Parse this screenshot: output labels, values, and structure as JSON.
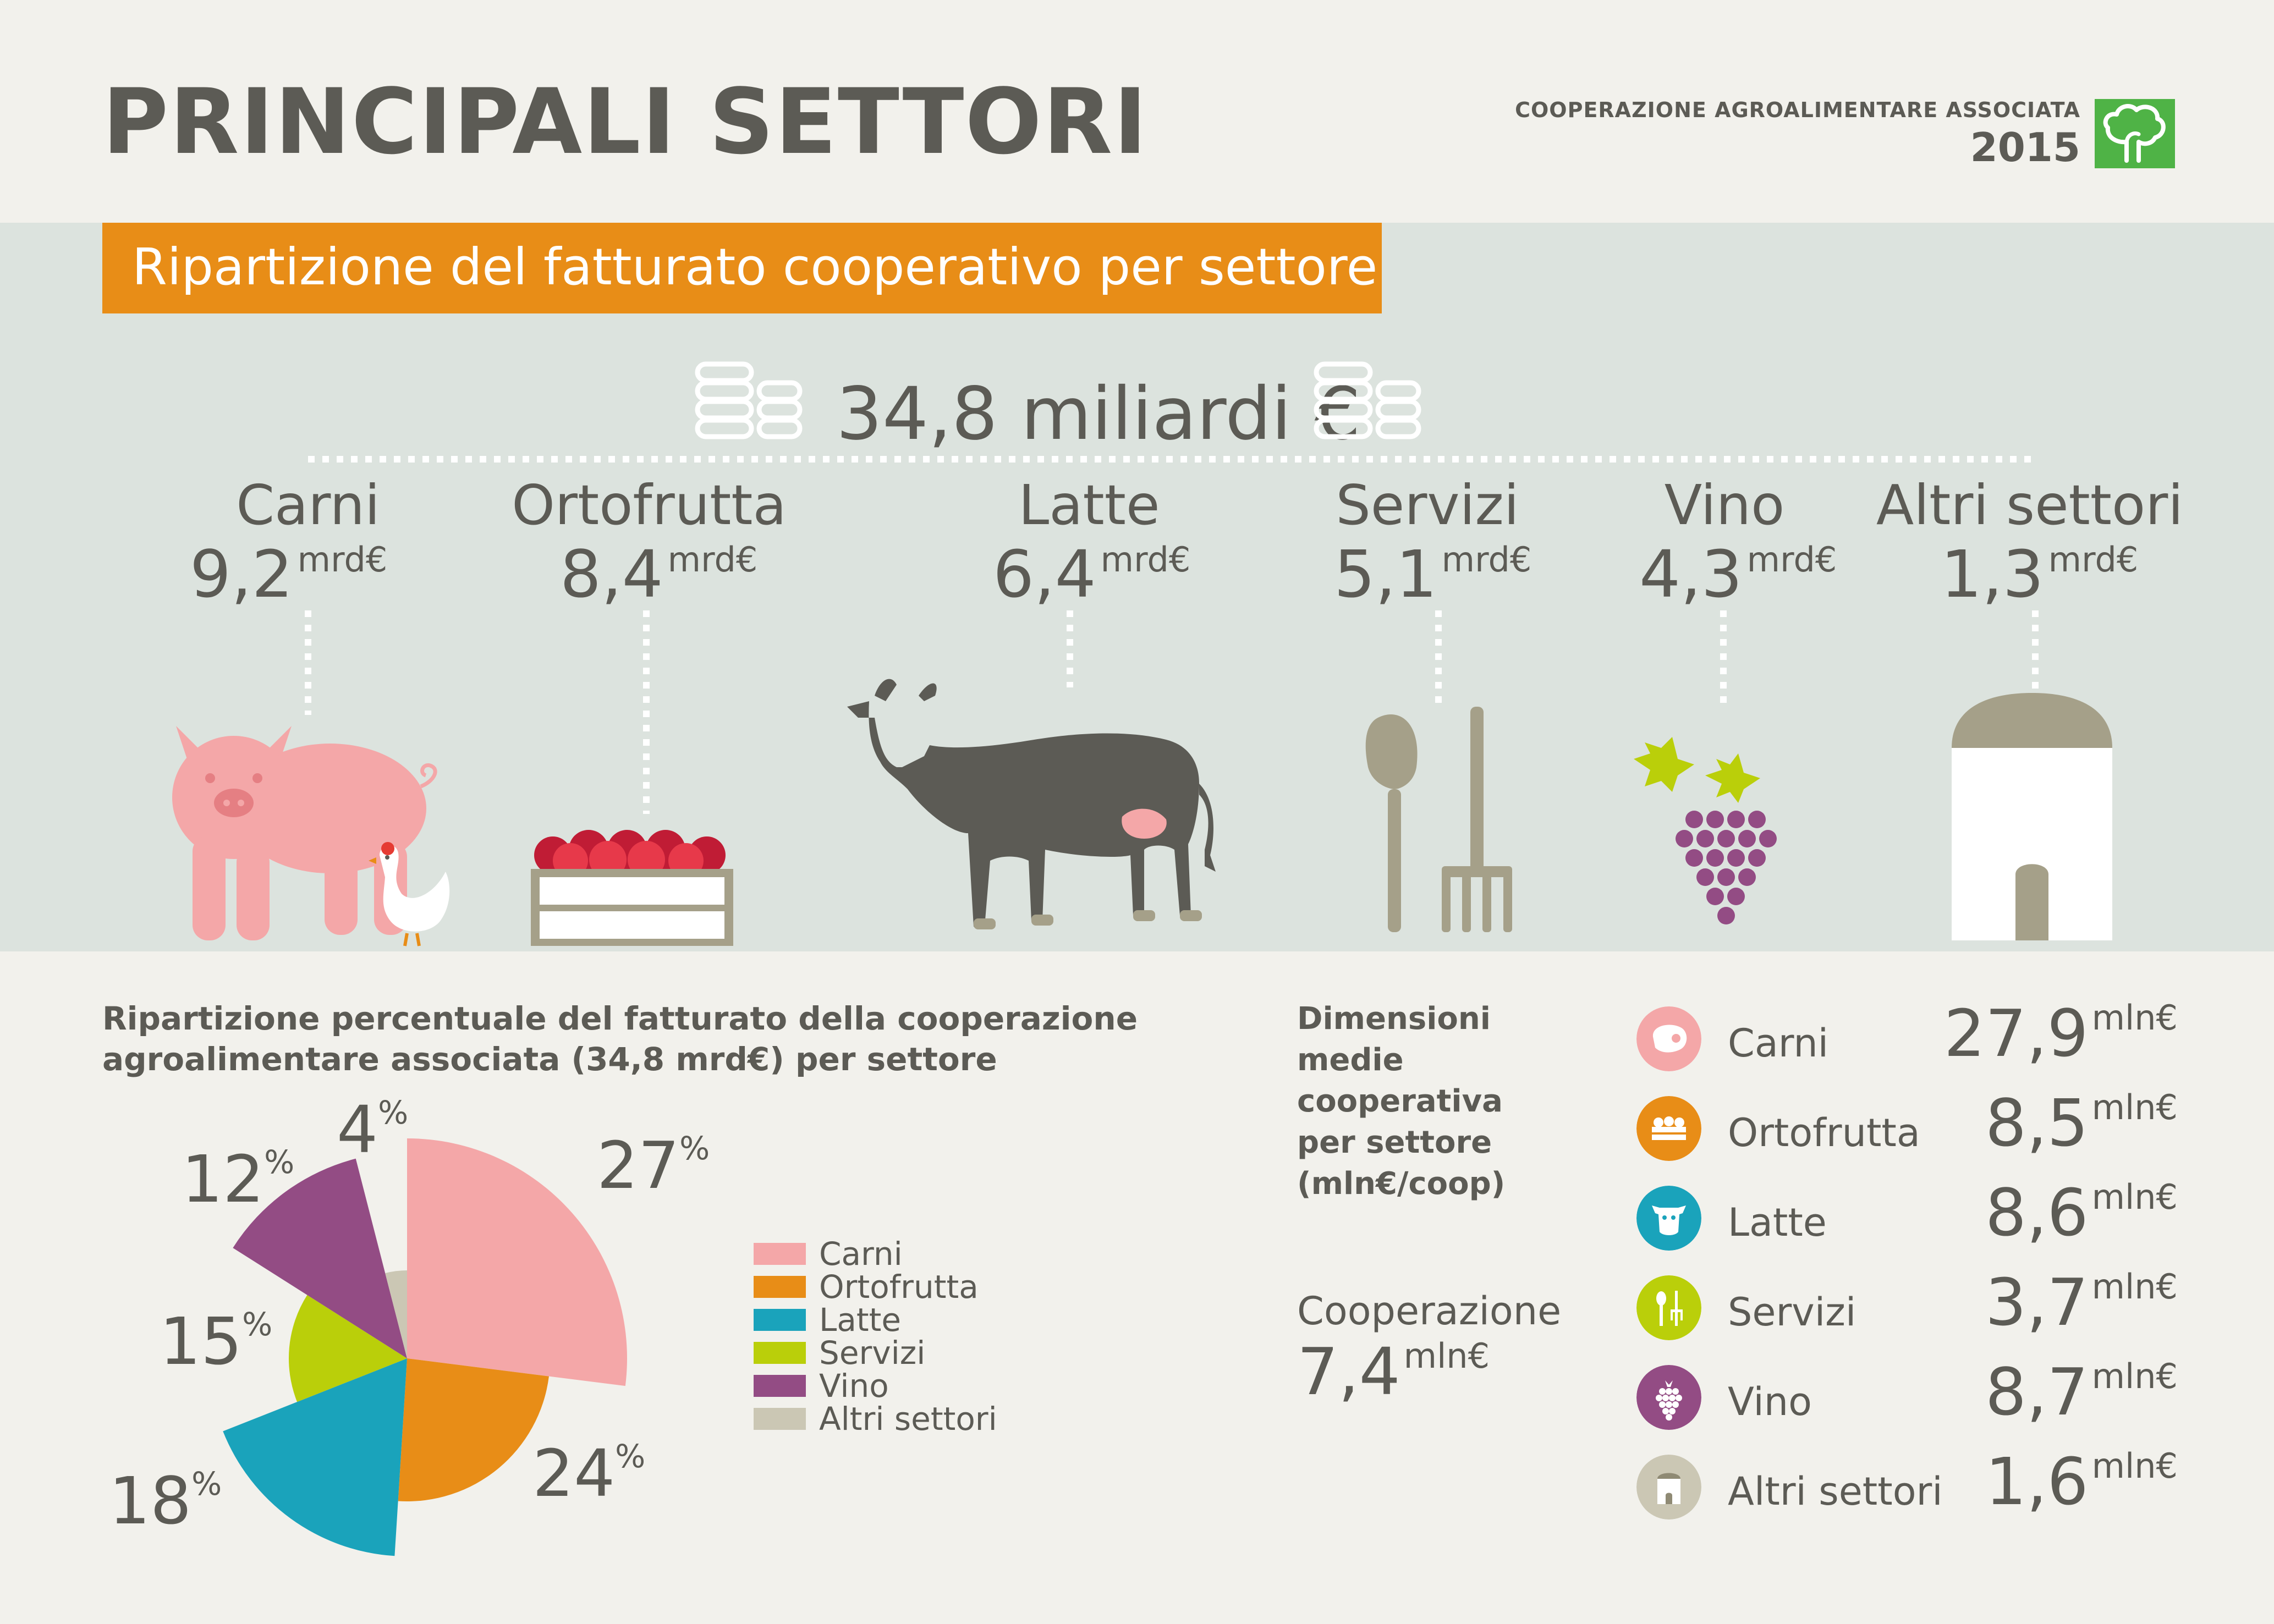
{
  "header": {
    "title": "PRINCIPALI SETTORI",
    "org": "COOPERAZIONE AGROALIMENTARE ASSOCIATA",
    "year": "2015"
  },
  "band": {
    "title": "Ripartizione del fatturato cooperativo per settore",
    "total": "34,8 miliardi €",
    "sectors": [
      {
        "name": "Carni",
        "value": "9,2",
        "unit": "mrd€"
      },
      {
        "name": "Ortofrutta",
        "value": "8,4",
        "unit": "mrd€"
      },
      {
        "name": "Latte",
        "value": "6,4",
        "unit": "mrd€"
      },
      {
        "name": "Servizi",
        "value": "5,1",
        "unit": "mrd€"
      },
      {
        "name": "Vino",
        "value": "4,3",
        "unit": "mrd€"
      },
      {
        "name": "Altri settori",
        "value": "1,3",
        "unit": "mrd€"
      }
    ]
  },
  "pie_section": {
    "title_line1": "Ripartizione percentuale del fatturato della cooperazione",
    "title_line2": "agroalimentare associata (34,8 mrd€) per settore",
    "labels": [
      {
        "num": "27",
        "sym": "%"
      },
      {
        "num": "24",
        "sym": "%"
      },
      {
        "num": "18",
        "sym": "%"
      },
      {
        "num": "15",
        "sym": "%"
      },
      {
        "num": "12",
        "sym": "%"
      },
      {
        "num": "4",
        "sym": "%"
      }
    ]
  },
  "chart_data": {
    "type": "pie",
    "title": "Ripartizione percentuale del fatturato della cooperazione agroalimentare associata (34,8 mrd€) per settore",
    "categories": [
      "Carni",
      "Ortofrutta",
      "Latte",
      "Servizi",
      "Vino",
      "Altri settori"
    ],
    "values": [
      27,
      24,
      18,
      15,
      12,
      4
    ],
    "colors": [
      "#f4a7a8",
      "#e88d17",
      "#1aa3bb",
      "#bacf0a",
      "#934c84",
      "#cbc7b4"
    ],
    "legend_position": "right"
  },
  "dimensions": {
    "title_lines": [
      "Dimensioni",
      "medie",
      "cooperativa",
      "per settore",
      "(mln€/coop)"
    ],
    "coop_label": "Cooperazione",
    "coop_value": "7,4",
    "coop_unit": "mln€",
    "rows": [
      {
        "label": "Carni",
        "value": "27,9",
        "unit": "mln€",
        "icon": "meat-icon",
        "color": "#f4a7a8"
      },
      {
        "label": "Ortofrutta",
        "value": "8,5",
        "unit": "mln€",
        "icon": "crate-icon",
        "color": "#e88d17"
      },
      {
        "label": "Latte",
        "value": "8,6",
        "unit": "mln€",
        "icon": "cow-icon",
        "color": "#1aa3bb"
      },
      {
        "label": "Servizi",
        "value": "3,7",
        "unit": "mln€",
        "icon": "tools-icon",
        "color": "#bacf0a"
      },
      {
        "label": "Vino",
        "value": "8,7",
        "unit": "mln€",
        "icon": "grapes-icon",
        "color": "#934c84"
      },
      {
        "label": "Altri settori",
        "value": "1,6",
        "unit": "mln€",
        "icon": "silo-icon",
        "color": "#cbc7b4"
      }
    ]
  }
}
